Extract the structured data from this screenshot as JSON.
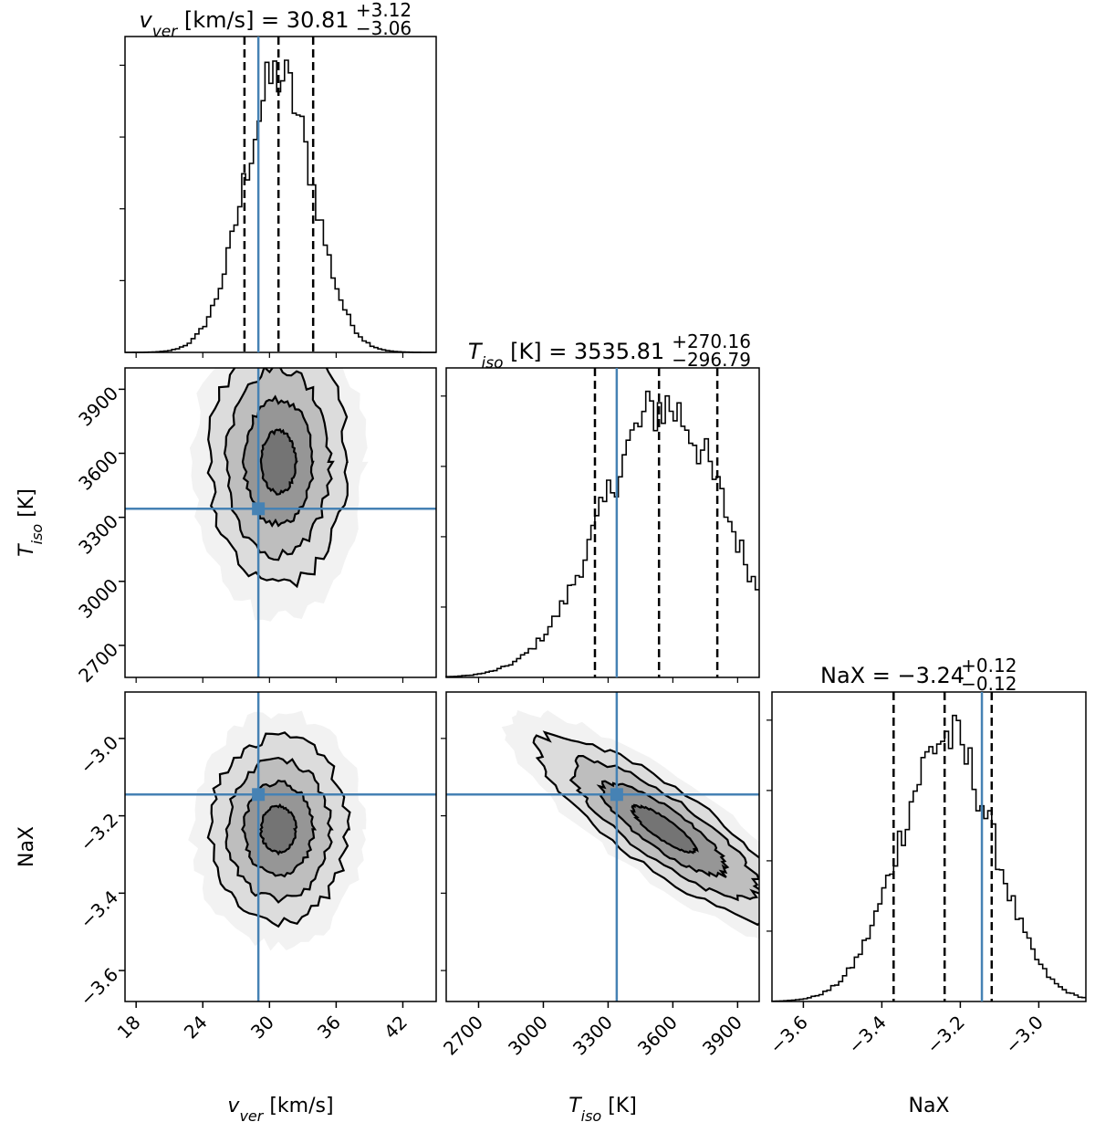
{
  "chart_data": {
    "type": "corner",
    "params": [
      {
        "key": "v_ver",
        "sym": "v",
        "sub": "ver",
        "unit": "[km/s]",
        "median": "30.81",
        "plus": "+3.12",
        "minus": "−3.06",
        "q": [
          27.75,
          30.81,
          33.93
        ],
        "truth": 29.0,
        "range": [
          17,
          45
        ],
        "ticks": [
          18,
          24,
          30,
          36,
          42
        ],
        "tick_labels": [
          "18",
          "24",
          "30",
          "36",
          "42"
        ],
        "hist_sigma": 3.1,
        "hist_center": 30.8
      },
      {
        "key": "T_iso",
        "sym": "T",
        "sub": "iso",
        "unit": "[K]",
        "median": "3535.81",
        "plus": "+270.16",
        "minus": "−296.79",
        "q": [
          3239.02,
          3535.81,
          3805.97
        ],
        "truth": 3340,
        "range": [
          2550,
          4000
        ],
        "ticks": [
          2700,
          3000,
          3300,
          3600,
          3900
        ],
        "tick_labels": [
          "2700",
          "3000",
          "3300",
          "3600",
          "3900"
        ],
        "hist_sigma": 290,
        "hist_center": 3560
      },
      {
        "key": "NaX",
        "sym": "NaX",
        "sub": "",
        "unit": "",
        "median": "−3.24",
        "plus": "+0.12",
        "minus": "−0.12",
        "q": [
          -3.37,
          -3.24,
          -3.12
        ],
        "truth": -3.145,
        "range": [
          -3.68,
          -2.88
        ],
        "ticks": [
          -3.6,
          -3.4,
          -3.2,
          -3.0
        ],
        "tick_labels": [
          "−3.6",
          "−3.4",
          "−3.2",
          "−3.0"
        ],
        "hist_sigma": 0.12,
        "hist_center": -3.235
      }
    ],
    "correlations": {
      "v_ver|T_iso": 0.0,
      "v_ver|NaX": 0.0,
      "T_iso|NaX": -0.85
    },
    "truth_color": "#4682b4",
    "x_labels": [
      "v_ver [km/s]",
      "T_iso [K]",
      "NaX"
    ],
    "y_labels": [
      "T_iso [K]",
      "NaX"
    ]
  }
}
